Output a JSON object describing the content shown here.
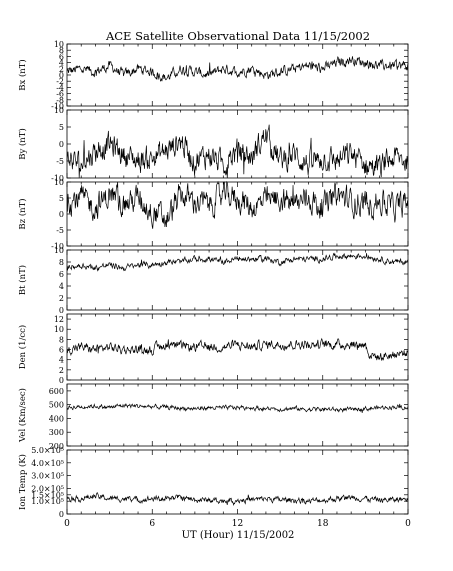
{
  "chart_data": {
    "type": "line",
    "title": "ACE Satellite Observational Data   11/15/2002",
    "xlabel": "UT (Hour)  11/15/2002",
    "x_ticks": [
      "0",
      "6",
      "12",
      "18",
      "0"
    ],
    "xlim_hours": [
      0,
      24
    ],
    "grid": false,
    "panels": [
      {
        "name": "bx",
        "ylabel": "Bx (nT)",
        "ylim": [
          -10,
          10
        ],
        "ytick_values": [
          -10,
          -8,
          -6,
          -4,
          -2,
          0,
          2,
          4,
          6,
          8,
          10
        ],
        "ytick_labels": [
          "-10",
          "-8",
          "-6",
          "-4",
          "-2",
          "0",
          "2",
          "4",
          "6",
          "8",
          "10"
        ],
        "x_hours": [
          0,
          1,
          2,
          3,
          4,
          5,
          6,
          7,
          8,
          9,
          10,
          11,
          12,
          13,
          14,
          15,
          16,
          17,
          18,
          19,
          20,
          21,
          22,
          23,
          24
        ],
        "values": [
          1,
          2,
          1,
          3,
          0,
          2,
          1,
          -1,
          2,
          1,
          0,
          2,
          1,
          2,
          0,
          1,
          2,
          3,
          2,
          4,
          5,
          4,
          3,
          3,
          3
        ]
      },
      {
        "name": "by",
        "ylabel": "By (nT)",
        "ylim": [
          -10,
          10
        ],
        "ytick_values": [
          -10,
          -5,
          0,
          5,
          10
        ],
        "ytick_labels": [
          "-10",
          "-5",
          "0",
          "5",
          "10"
        ],
        "x_hours": [
          0,
          1,
          2,
          3,
          4,
          5,
          6,
          7,
          8,
          9,
          10,
          11,
          12,
          13,
          14,
          15,
          16,
          17,
          18,
          19,
          20,
          21,
          22,
          23,
          24
        ],
        "values": [
          -4,
          -6,
          -2,
          0,
          -3,
          -5,
          -4,
          -2,
          1,
          -5,
          -3,
          -6,
          -2,
          -4,
          3,
          -5,
          -3,
          -6,
          -4,
          -5,
          -3,
          -6,
          -7,
          -4,
          -5
        ]
      },
      {
        "name": "bz",
        "ylabel": "Bz (nT)",
        "ylim": [
          -10,
          10
        ],
        "ytick_values": [
          -10,
          -5,
          0,
          5,
          10
        ],
        "ytick_labels": [
          "-10",
          "-5",
          "0",
          "5",
          "10"
        ],
        "x_hours": [
          0,
          1,
          2,
          3,
          4,
          5,
          6,
          7,
          8,
          9,
          10,
          11,
          12,
          13,
          14,
          15,
          16,
          17,
          18,
          19,
          20,
          21,
          22,
          23,
          24
        ],
        "values": [
          4,
          5,
          2,
          6,
          3,
          5,
          1,
          -2,
          6,
          4,
          3,
          6,
          5,
          2,
          4,
          5,
          3,
          5,
          2,
          6,
          4,
          3,
          4,
          2,
          3
        ]
      },
      {
        "name": "bt",
        "ylabel": "Bt (nT)",
        "ylim": [
          0,
          10
        ],
        "ytick_values": [
          0,
          2,
          4,
          6,
          8,
          10
        ],
        "ytick_labels": [
          "0",
          "2",
          "4",
          "6",
          "8",
          "10"
        ],
        "x_hours": [
          0,
          1,
          2,
          3,
          4,
          5,
          6,
          7,
          8,
          9,
          10,
          11,
          12,
          13,
          14,
          15,
          16,
          17,
          18,
          19,
          20,
          21,
          22,
          23,
          24
        ],
        "values": [
          7,
          7.5,
          7,
          7.5,
          7,
          7.5,
          7.5,
          8,
          8,
          8.5,
          8.5,
          8,
          8.5,
          8.5,
          8.5,
          8,
          8.5,
          8.5,
          8.5,
          9,
          9,
          9,
          8.5,
          8,
          8
        ]
      },
      {
        "name": "den",
        "ylabel": "Den (1/cc)",
        "ylim": [
          0,
          13
        ],
        "ytick_values": [
          0,
          2,
          4,
          6,
          8,
          10,
          12
        ],
        "ytick_labels": [
          "0",
          "2",
          "4",
          "6",
          "8",
          "10",
          "12"
        ],
        "x_hours": [
          0,
          1,
          2,
          3,
          4,
          5,
          6,
          7,
          8,
          9,
          10,
          11,
          12,
          13,
          14,
          15,
          16,
          17,
          18,
          19,
          20,
          21,
          21.3,
          22,
          23,
          24
        ],
        "values": [
          6,
          6.5,
          6,
          6.5,
          6,
          6,
          6,
          7,
          6.5,
          6.5,
          6.5,
          6.5,
          7,
          6.5,
          7,
          7,
          7,
          7,
          7,
          7,
          7,
          7,
          5,
          4.5,
          5,
          5.5
        ]
      },
      {
        "name": "vel",
        "ylabel": "Vel (Km/sec)",
        "ylim": [
          200,
          650
        ],
        "ytick_values": [
          200,
          300,
          400,
          500,
          600
        ],
        "ytick_labels": [
          "200",
          "300",
          "400",
          "500",
          "600"
        ],
        "x_hours": [
          0,
          1,
          2,
          3,
          4,
          5,
          6,
          7,
          8,
          9,
          10,
          11,
          12,
          13,
          14,
          15,
          16,
          17,
          18,
          19,
          20,
          21,
          22,
          23,
          24
        ],
        "values": [
          480,
          485,
          490,
          480,
          495,
          490,
          485,
          480,
          475,
          470,
          478,
          475,
          480,
          478,
          470,
          468,
          472,
          465,
          468,
          462,
          465,
          470,
          478,
          485,
          480
        ]
      },
      {
        "name": "ion-temp",
        "ylabel": "Ion Temp (K)",
        "ylim": [
          0,
          500000
        ],
        "ytick_values": [
          0,
          100000,
          150000,
          200000,
          300000,
          400000,
          500000
        ],
        "ytick_labels": [
          "0",
          "1.0×10⁵",
          "1.5×10⁵",
          "2.0×10⁵",
          "3.0×10⁵",
          "4.0×10⁵",
          "5.0×10⁵"
        ],
        "x_hours": [
          0,
          1,
          2,
          3,
          4,
          5,
          6,
          7,
          8,
          9,
          10,
          11,
          12,
          13,
          14,
          15,
          16,
          17,
          18,
          19,
          20,
          21,
          22,
          23,
          24
        ],
        "values": [
          130000,
          120000,
          140000,
          120000,
          120000,
          110000,
          120000,
          120000,
          130000,
          110000,
          110000,
          100000,
          110000,
          110000,
          120000,
          110000,
          110000,
          100000,
          110000,
          120000,
          130000,
          120000,
          110000,
          110000,
          120000
        ]
      }
    ]
  },
  "colors": {
    "line": "#000000",
    "background": "#ffffff"
  }
}
